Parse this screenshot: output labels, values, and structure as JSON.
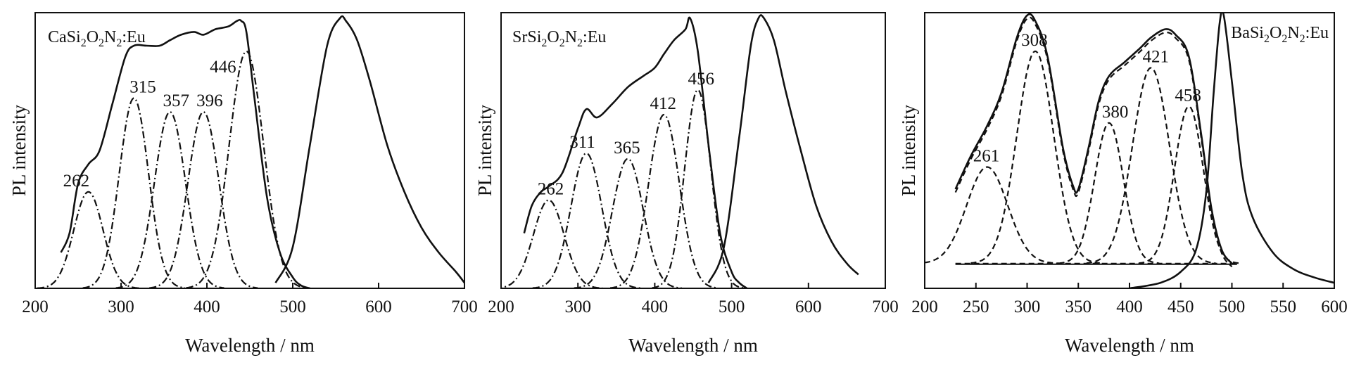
{
  "chart_data": [
    {
      "type": "line",
      "title": "",
      "sample": {
        "base": "CaSi",
        "s1": "2",
        "m1": "O",
        "s2": "2",
        "m2": "N",
        "s3": "2",
        "end": ":Eu"
      },
      "xlabel": "Wavelength / nm",
      "ylabel": "PL intensity",
      "xlim": [
        200,
        700
      ],
      "ylim": [
        0,
        1.0
      ],
      "xticks": [
        200,
        300,
        400,
        500,
        600,
        700
      ],
      "grid": false,
      "excitation": {
        "x": [
          230,
          240,
          250,
          262,
          275,
          290,
          305,
          315,
          330,
          345,
          357,
          370,
          385,
          396,
          410,
          425,
          435,
          440,
          446,
          455,
          470,
          485,
          500,
          510,
          520
        ],
        "y": [
          0.13,
          0.2,
          0.38,
          0.45,
          0.5,
          0.67,
          0.84,
          0.88,
          0.88,
          0.88,
          0.9,
          0.92,
          0.93,
          0.92,
          0.94,
          0.95,
          0.97,
          0.97,
          0.93,
          0.7,
          0.33,
          0.13,
          0.04,
          0.01,
          0.0
        ]
      },
      "emission": {
        "x": [
          480,
          500,
          520,
          540,
          555,
          562,
          575,
          590,
          610,
          630,
          650,
          670,
          690,
          700
        ],
        "y": [
          0.02,
          0.15,
          0.52,
          0.88,
          0.98,
          0.97,
          0.9,
          0.75,
          0.52,
          0.35,
          0.22,
          0.13,
          0.06,
          0.02
        ]
      },
      "gaussian_peaks": [
        {
          "center": 262,
          "height": 0.35,
          "label": "262"
        },
        {
          "center": 315,
          "height": 0.69,
          "label": "315"
        },
        {
          "center": 357,
          "height": 0.64,
          "label": "357"
        },
        {
          "center": 396,
          "height": 0.64,
          "label": "396"
        },
        {
          "center": 446,
          "height": 0.86,
          "label": "446"
        }
      ]
    },
    {
      "type": "line",
      "title": "",
      "sample": {
        "base": "SrSi",
        "s1": "2",
        "m1": "O",
        "s2": "2",
        "m2": "N",
        "s3": "2",
        "end": ":Eu"
      },
      "xlabel": "Wavelength / nm",
      "ylabel": "PL intensity",
      "xlim": [
        200,
        700
      ],
      "ylim": [
        0,
        1.0
      ],
      "xticks": [
        200,
        300,
        400,
        500,
        600,
        700
      ],
      "grid": false,
      "excitation": {
        "x": [
          230,
          240,
          252,
          262,
          280,
          300,
          311,
          325,
          345,
          365,
          385,
          400,
          412,
          425,
          440,
          446,
          456,
          470,
          485,
          500,
          510,
          520
        ],
        "y": [
          0.2,
          0.3,
          0.35,
          0.37,
          0.42,
          0.58,
          0.65,
          0.62,
          0.67,
          0.73,
          0.77,
          0.8,
          0.85,
          0.9,
          0.94,
          0.98,
          0.86,
          0.52,
          0.2,
          0.06,
          0.02,
          0.0
        ]
      },
      "emission": {
        "x": [
          470,
          490,
          510,
          525,
          535,
          542,
          555,
          570,
          590,
          610,
          630,
          650,
          665
        ],
        "y": [
          0.02,
          0.15,
          0.55,
          0.88,
          0.98,
          0.98,
          0.9,
          0.72,
          0.5,
          0.3,
          0.17,
          0.09,
          0.05
        ]
      },
      "gaussian_peaks": [
        {
          "center": 262,
          "height": 0.32,
          "label": "262"
        },
        {
          "center": 311,
          "height": 0.49,
          "label": "311"
        },
        {
          "center": 365,
          "height": 0.47,
          "label": "365"
        },
        {
          "center": 412,
          "height": 0.63,
          "label": "412"
        },
        {
          "center": 456,
          "height": 0.72,
          "label": "456"
        }
      ]
    },
    {
      "type": "line",
      "title": "",
      "sample": {
        "base": "BaSi",
        "s1": "2",
        "m1": "O",
        "s2": "2",
        "m2": "N",
        "s3": "2",
        "end": ":Eu"
      },
      "xlabel": "Wavelength / nm",
      "ylabel": "PL intensity",
      "xlim": [
        200,
        600
      ],
      "ylim": [
        0,
        1.0
      ],
      "xticks": [
        200,
        250,
        300,
        350,
        400,
        450,
        500,
        550,
        600
      ],
      "grid": false,
      "baseline": 0.09,
      "excitation": {
        "x": [
          230,
          245,
          261,
          275,
          290,
          300,
          308,
          320,
          335,
          345,
          350,
          360,
          370,
          380,
          395,
          410,
          421,
          435,
          445,
          458,
          470,
          480,
          490,
          500
        ],
        "y": [
          0.36,
          0.48,
          0.59,
          0.71,
          0.91,
          0.99,
          0.97,
          0.84,
          0.51,
          0.37,
          0.36,
          0.51,
          0.68,
          0.77,
          0.82,
          0.87,
          0.91,
          0.94,
          0.92,
          0.84,
          0.56,
          0.29,
          0.14,
          0.09
        ]
      },
      "emission": {
        "x": [
          400,
          430,
          450,
          465,
          475,
          482,
          488,
          492,
          500,
          510,
          520,
          540,
          560,
          580,
          600
        ],
        "y": [
          0.0,
          0.02,
          0.06,
          0.14,
          0.35,
          0.7,
          0.96,
          0.99,
          0.75,
          0.42,
          0.26,
          0.13,
          0.07,
          0.04,
          0.02
        ]
      },
      "gaussian_peaks": [
        {
          "center": 261,
          "height": 0.44,
          "label": "261"
        },
        {
          "center": 308,
          "height": 0.86,
          "label": "308"
        },
        {
          "center": 380,
          "height": 0.6,
          "label": "380"
        },
        {
          "center": 421,
          "height": 0.8,
          "label": "421"
        },
        {
          "center": 458,
          "height": 0.66,
          "label": "458"
        }
      ]
    }
  ]
}
